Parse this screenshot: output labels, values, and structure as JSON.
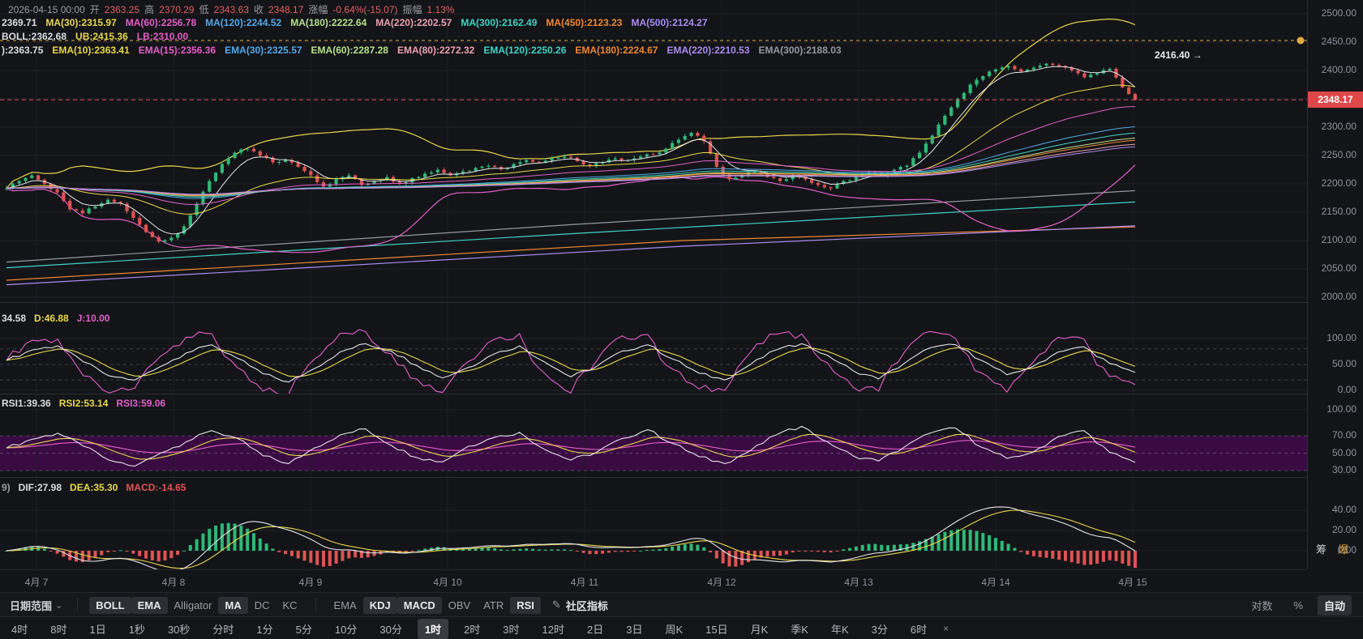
{
  "header": {
    "ohlc_row": [
      {
        "text": "2026-04-15 00:00",
        "color": "#9a9da3"
      },
      {
        "text": "开",
        "color": "#9a9da3"
      },
      {
        "text": "2363.25",
        "color": "#e06060"
      },
      {
        "text": "高",
        "color": "#9a9da3"
      },
      {
        "text": "2370.29",
        "color": "#e06060"
      },
      {
        "text": "低",
        "color": "#9a9da3"
      },
      {
        "text": "2343.63",
        "color": "#e06060"
      },
      {
        "text": "收",
        "color": "#9a9da3"
      },
      {
        "text": "2348.17",
        "color": "#e06060"
      },
      {
        "text": "涨幅",
        "color": "#9a9da3"
      },
      {
        "text": "-0.64%(-15.07)",
        "color": "#e06060"
      },
      {
        "text": "振幅",
        "color": "#9a9da3"
      },
      {
        "text": "1.13%",
        "color": "#e06060"
      }
    ],
    "ma_row": [
      {
        "text": "2369.71",
        "color": "#dcdde0"
      },
      {
        "text": "MA(30):2315.97",
        "color": "#e8d84b"
      },
      {
        "text": "MA(60):2256.78",
        "color": "#e35fc8"
      },
      {
        "text": "MA(120):2244.52",
        "color": "#52a8e8"
      },
      {
        "text": "MA(180):2222.64",
        "color": "#b6e08a"
      },
      {
        "text": "MA(220):2202.57",
        "color": "#eda0b0"
      },
      {
        "text": "MA(300):2162.49",
        "color": "#3fd4c4"
      },
      {
        "text": "MA(450):2123.23",
        "color": "#ee8833"
      },
      {
        "text": "MA(500):2124.27",
        "color": "#a98cf0"
      }
    ],
    "boll_row": [
      {
        "text": "BOLL:2362.68",
        "color": "#dcdde0"
      },
      {
        "text": "UB:2415.36",
        "color": "#e8d84b"
      },
      {
        "text": "LB:2310.00",
        "color": "#e35fc8"
      }
    ],
    "ema_row": [
      {
        "text": "):2363.75",
        "color": "#dcdde0"
      },
      {
        "text": "EMA(10):2363.41",
        "color": "#e8d84b"
      },
      {
        "text": "EMA(15):2356.36",
        "color": "#e35fc8"
      },
      {
        "text": "EMA(30):2325.57",
        "color": "#52a8e8"
      },
      {
        "text": "EMA(60):2287.28",
        "color": "#b6e08a"
      },
      {
        "text": "EMA(80):2272.32",
        "color": "#eda0b0"
      },
      {
        "text": "EMA(120):2250.26",
        "color": "#3fd4c4"
      },
      {
        "text": "EMA(180):2224.67",
        "color": "#ee8833"
      },
      {
        "text": "EMA(220):2210.53",
        "color": "#a98cf0"
      },
      {
        "text": "EMA(300):2188.03",
        "color": "#9598a1"
      }
    ]
  },
  "panels": {
    "kdj": {
      "legend": [
        {
          "text": "34.58",
          "color": "#dcdde0"
        },
        {
          "text": "D:46.88",
          "color": "#e8d84b"
        },
        {
          "text": "J:10.00",
          "color": "#e35fc8"
        }
      ]
    },
    "rsi": {
      "legend": [
        {
          "text": "RSI1:39.36",
          "color": "#dcdde0"
        },
        {
          "text": "RSI2:53.14",
          "color": "#e8d84b"
        },
        {
          "text": "RSI3:59.06",
          "color": "#e35fc8"
        }
      ]
    },
    "macd": {
      "legend": [
        {
          "text": "9)",
          "color": "#9a9da3"
        },
        {
          "text": "DIF:27.98",
          "color": "#dcdde0"
        },
        {
          "text": "DEA:35.30",
          "color": "#e8d84b"
        },
        {
          "text": "MACD:-14.65",
          "color": "#e05252"
        }
      ]
    }
  },
  "price_axis": {
    "ticks": [
      {
        "label": "2500.00",
        "value": 2500
      },
      {
        "label": "2450.00",
        "value": 2450
      },
      {
        "label": "2400.00",
        "value": 2400
      },
      {
        "label": "2300.00",
        "value": 2300
      },
      {
        "label": "2250.00",
        "value": 2250
      },
      {
        "label": "2200.00",
        "value": 2200
      },
      {
        "label": "2150.00",
        "value": 2150
      },
      {
        "label": "2100.00",
        "value": 2100
      },
      {
        "label": "2050.00",
        "value": 2050
      },
      {
        "label": "2000.00",
        "value": 2000
      }
    ],
    "badge": {
      "label": "2348.17",
      "value": 2348.17
    }
  },
  "kdj_axis": [
    {
      "label": "100.00",
      "value": 100
    },
    {
      "label": "50.00",
      "value": 50
    },
    {
      "label": "0.00",
      "value": 0
    }
  ],
  "rsi_axis": [
    {
      "label": "100.00",
      "value": 100
    },
    {
      "label": "70.00",
      "value": 70
    },
    {
      "label": "50.00",
      "value": 50
    },
    {
      "label": "30.00",
      "value": 30
    }
  ],
  "macd_axis": [
    {
      "label": "40.00",
      "value": 40
    },
    {
      "label": "20.00",
      "value": 20
    },
    {
      "label": "0.00",
      "value": 0
    }
  ],
  "annotations": {
    "high_text": "2416.40 →"
  },
  "side_labels": [
    {
      "text": "筹",
      "color": "#c9cbd1"
    },
    {
      "text": "爆",
      "color": "#e8a83c"
    }
  ],
  "toolbar": {
    "date_range": "日期范围",
    "caret": "⌄",
    "overlay_indicators": [
      {
        "label": "BOLL",
        "active": true
      },
      {
        "label": "EMA",
        "active": true
      },
      {
        "label": "Alligator",
        "active": false
      },
      {
        "label": "MA",
        "active": true
      },
      {
        "label": "DC",
        "active": false
      },
      {
        "label": "KC",
        "active": false
      }
    ],
    "sub_indicators": [
      {
        "label": "EMA",
        "active": false
      },
      {
        "label": "KDJ",
        "active": true
      },
      {
        "label": "MACD",
        "active": true
      },
      {
        "label": "OBV",
        "active": false
      },
      {
        "label": "ATR",
        "active": false
      },
      {
        "label": "RSI",
        "active": true
      }
    ],
    "edit_icon": "✎",
    "community": "社区指标",
    "scale_options": [
      {
        "label": "对数",
        "active": false
      },
      {
        "label": "%",
        "active": false
      },
      {
        "label": "自动",
        "active": true
      }
    ]
  },
  "timeframes": {
    "items": [
      "4时",
      "8时",
      "1日",
      "1秒",
      "30秒",
      "分时",
      "1分",
      "5分",
      "10分",
      "30分",
      "1时",
      "2时",
      "3时",
      "12时",
      "2日",
      "3日",
      "周K",
      "15日",
      "月K",
      "季K",
      "年K",
      "3分",
      "6时"
    ],
    "active": "1时",
    "close_icon": "×"
  },
  "chart_data": {
    "type": "candlestick",
    "interval": "1时",
    "title": "",
    "x_dates": [
      "4月 7",
      "4月 8",
      "4月 9",
      "4月 10",
      "4月 11",
      "4月 12",
      "4月 13",
      "4月 14",
      "4月 15"
    ],
    "price_range": [
      2000,
      2500
    ],
    "last_price": 2348.17,
    "session_high_annotation": 2416.4,
    "alert_level": 2452,
    "closes": [
      2192,
      2205,
      2215,
      2200,
      2185,
      2155,
      2148,
      2160,
      2172,
      2165,
      2140,
      2115,
      2098,
      2105,
      2125,
      2165,
      2205,
      2235,
      2255,
      2262,
      2250,
      2238,
      2242,
      2230,
      2215,
      2195,
      2208,
      2215,
      2198,
      2205,
      2212,
      2200,
      2210,
      2218,
      2225,
      2215,
      2222,
      2228,
      2232,
      2226,
      2235,
      2242,
      2238,
      2245,
      2248,
      2240,
      2232,
      2238,
      2245,
      2242,
      2248,
      2252,
      2262,
      2278,
      2290,
      2275,
      2230,
      2208,
      2215,
      2222,
      2212,
      2205,
      2215,
      2208,
      2198,
      2192,
      2205,
      2212,
      2220,
      2215,
      2225,
      2232,
      2255,
      2285,
      2320,
      2350,
      2375,
      2390,
      2402,
      2408,
      2398,
      2405,
      2412,
      2408,
      2400,
      2388,
      2395,
      2403,
      2370,
      2348.17
    ],
    "overlays_ema_spans": [
      [
        6,
        "white_line"
      ],
      [
        28,
        "yellow"
      ],
      [
        56,
        "magenta"
      ],
      [
        100,
        "blue"
      ],
      [
        120,
        "teal"
      ],
      [
        140,
        "green_line"
      ],
      [
        150,
        "orange"
      ],
      [
        170,
        "pink"
      ],
      [
        185,
        "purple"
      ]
    ],
    "boll": {
      "window": 40,
      "mult": 2.0,
      "ub_color": "yellow",
      "lb_color": "magenta"
    },
    "trend_lines": [
      {
        "color": "teal",
        "pts": [
          [
            0,
            2052
          ],
          [
            0.5,
            2112
          ],
          [
            1,
            2168
          ]
        ]
      },
      {
        "color": "gray_line",
        "pts": [
          [
            0,
            2062
          ],
          [
            0.5,
            2128
          ],
          [
            1,
            2188
          ]
        ]
      },
      {
        "color": "orange",
        "pts": [
          [
            0,
            2030
          ],
          [
            0.6,
            2100
          ],
          [
            1,
            2124
          ]
        ]
      },
      {
        "color": "purple",
        "pts": [
          [
            0,
            2022
          ],
          [
            0.6,
            2090
          ],
          [
            1,
            2126
          ]
        ]
      }
    ],
    "kdj": {
      "k_keyframes": [
        58,
        78,
        86,
        55,
        28,
        20,
        46,
        72,
        88,
        62,
        32,
        16,
        42,
        74,
        90,
        76,
        48,
        24,
        44,
        70,
        86,
        54,
        26,
        46,
        76,
        88,
        60,
        33,
        20,
        50,
        78,
        90,
        68,
        38,
        22,
        52,
        82,
        88,
        58,
        30,
        46,
        74,
        84,
        52,
        34.58
      ],
      "k_last": 34.58,
      "d_last": 46.88,
      "j_last": 10.0,
      "levels": [
        80,
        50,
        20
      ]
    },
    "rsi": {
      "rsi1_keyframes": [
        56,
        66,
        73,
        58,
        42,
        35,
        50,
        63,
        76,
        67,
        47,
        38,
        56,
        71,
        78,
        59,
        45,
        40,
        58,
        68,
        74,
        54,
        42,
        51,
        67,
        77,
        61,
        46,
        38,
        53,
        71,
        81,
        63,
        47,
        41,
        57,
        73,
        79,
        57,
        44,
        51,
        69,
        76,
        51,
        39.36
      ],
      "rsi1_last": 39.36,
      "rsi2_last": 53.14,
      "rsi3_last": 59.06,
      "band": [
        30,
        70
      ],
      "levels": [
        70,
        50,
        30
      ]
    },
    "macd": {
      "dif_last": 27.98,
      "dea_last": 35.3,
      "hist_last": -14.65,
      "fast": 10,
      "slow": 21,
      "signal": 7
    },
    "colors": {
      "up": "#2fb877",
      "down": "#e05252",
      "grid": "#202228",
      "grid_v": "#1c1e23",
      "axis_text": "#8f939c",
      "badge_bg": "#de4747",
      "band_fill": "#3a0b42",
      "yellow": "#e8d84b",
      "magenta": "#e35fc8",
      "blue": "#52a8e8",
      "green_line": "#b6e08a",
      "pink": "#eda0b0",
      "teal": "#3fd4c4",
      "orange": "#ee8833",
      "purple": "#a98cf0",
      "white_line": "#e4e5e9",
      "gray_line": "#9598a1",
      "dashed_red": "#d94f4f",
      "dashed_orange": "#e0ab44"
    }
  }
}
